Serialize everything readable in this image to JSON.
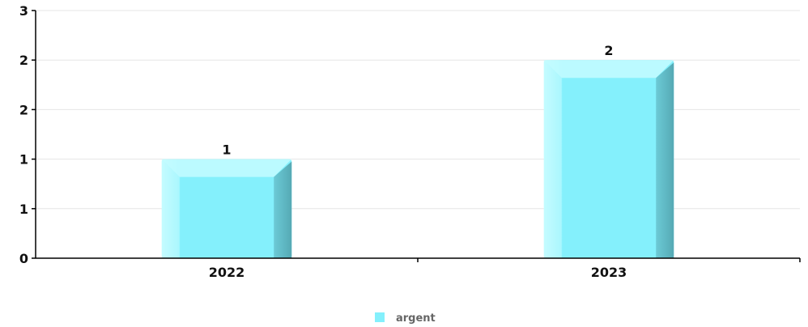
{
  "chart_data": {
    "type": "bar",
    "categories": [
      "2022",
      "2023"
    ],
    "series": [
      {
        "name": "argent",
        "values": [
          1,
          2
        ],
        "color": "#84f0fc"
      }
    ],
    "data_labels": [
      "1",
      "2"
    ],
    "y_tick_labels": [
      "0",
      "1",
      "1",
      "2",
      "2",
      "3"
    ],
    "ylim": [
      0,
      2.5
    ],
    "grid": true,
    "legend_position": "bottom-center",
    "colors": {
      "bar_face": "#84f0fc",
      "bar_highlight": "#c4fcff",
      "bar_shadow": "#5fb6c2",
      "grid": "#e6e6e6",
      "axis": "#000000",
      "legend_text": "#666666"
    }
  }
}
